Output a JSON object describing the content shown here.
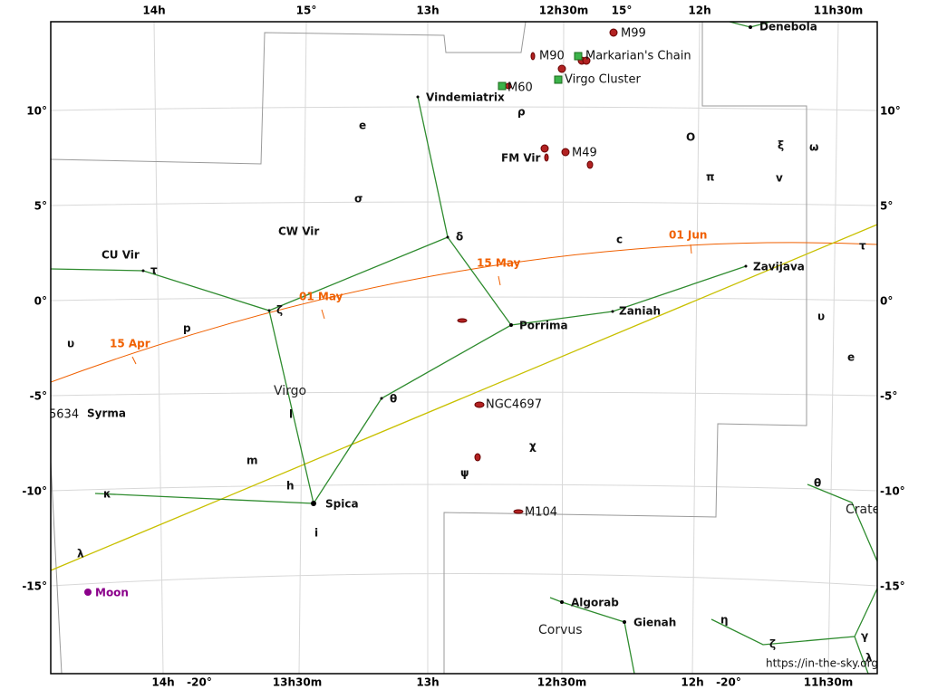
{
  "axes": {
    "top": [
      "14h",
      "15°",
      "13h",
      "12h30m",
      "15°",
      "12h",
      "11h30m"
    ],
    "bottom": [
      "14h",
      "-20°",
      "13h30m",
      "13h",
      "12h30m",
      "12h",
      "-20°",
      "11h30m"
    ],
    "declination": [
      "10°",
      "5°",
      "0°",
      "-5°",
      "-10°",
      "-15°"
    ]
  },
  "constellations": [
    "Virgo",
    "Corvus",
    "Crate"
  ],
  "stars": [
    "Denebola",
    "Vindemiatrix",
    "Zavijava",
    "Porrima",
    "Zaniah",
    "Spica",
    "Syrma",
    "Algorab",
    "Gienah",
    "CW Vir",
    "CU Vir",
    "FM Vir"
  ],
  "greek": [
    "e",
    "ρ",
    "O",
    "ξ",
    "ω",
    "σ",
    "π",
    "v",
    "δ",
    "c",
    "τ",
    "ζ",
    "p",
    "υ",
    "υ",
    "e",
    "θ",
    "l",
    "χ",
    "m",
    "ψ",
    "h",
    "κ",
    "i",
    "λ",
    "θ",
    "η",
    "ζ",
    "γ",
    "λ",
    "τ"
  ],
  "objects": [
    "M99",
    "M90",
    "Markarian's Chain",
    "M60",
    "Virgo Cluster",
    "M49",
    "NGC4697",
    "M104",
    "5634"
  ],
  "ecliptic_dates": [
    "15 Apr",
    "01 May",
    "15 May",
    "01 Jun"
  ],
  "moon": "Moon",
  "credit": "https://in-the-sky.org"
}
